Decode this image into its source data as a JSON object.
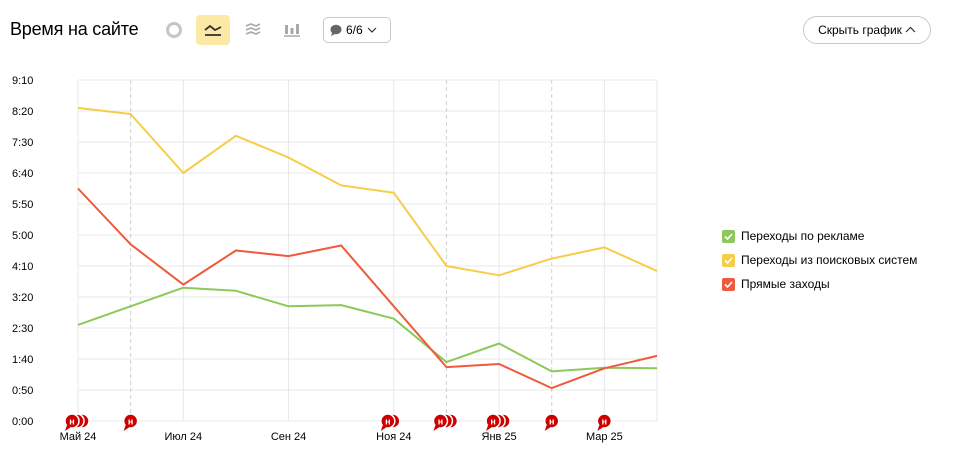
{
  "header": {
    "title": "Время на сайте",
    "annotations_label": "6/6",
    "hide_chart_label": "Скрыть график"
  },
  "toolbar": {
    "chart_types": [
      {
        "icon": "pie-chart-icon",
        "active": false
      },
      {
        "icon": "line-chart-icon",
        "active": true
      },
      {
        "icon": "area-chart-icon",
        "active": false
      },
      {
        "icon": "bar-chart-icon",
        "active": false
      }
    ]
  },
  "colors": {
    "grid": "#e8e8e8",
    "axis_text": "#000000",
    "marker": "#cc0000",
    "active_button_bg": "#fde9a6"
  },
  "chart_data": {
    "type": "line",
    "title": "",
    "xlabel": "",
    "ylabel": "",
    "categories": [
      "2024-05",
      "2024-06",
      "2024-07",
      "2024-08",
      "2024-09",
      "2024-10",
      "2024-11",
      "2024-12",
      "2025-01",
      "2025-02",
      "2025-03",
      "2025-04"
    ],
    "x_tick_labels": [
      {
        "index": 0,
        "label": "Май 24"
      },
      {
        "index": 2,
        "label": "Июл 24"
      },
      {
        "index": 4,
        "label": "Сен 24"
      },
      {
        "index": 6,
        "label": "Ноя 24"
      },
      {
        "index": 8,
        "label": "Янв 25"
      },
      {
        "index": 10,
        "label": "Мар 25"
      }
    ],
    "y_unit": "seconds",
    "ylim": [
      0,
      550
    ],
    "y_ticks": [
      0,
      50,
      100,
      150,
      200,
      250,
      300,
      350,
      400,
      450,
      500,
      550
    ],
    "y_tick_labels": [
      "0:00",
      "0:50",
      "1:40",
      "2:30",
      "3:20",
      "4:10",
      "5:00",
      "5:50",
      "6:40",
      "7:30",
      "8:20",
      "9:10"
    ],
    "grid": true,
    "legend_position": "right",
    "series": [
      {
        "name": "Переходы по рекламе",
        "color": "#8dc85a",
        "values": [
          155,
          185,
          215,
          210,
          185,
          187,
          165,
          95,
          125,
          80,
          86,
          85
        ]
      },
      {
        "name": "Переходы из поисковых систем",
        "color": "#f7cd48",
        "values": [
          505,
          495,
          400,
          460,
          425,
          380,
          368,
          250,
          235,
          262,
          280,
          242
        ]
      },
      {
        "name": "Прямые заходы",
        "color": "#ee5a3b",
        "values": [
          375,
          285,
          220,
          275,
          266,
          283,
          185,
          87,
          92,
          53,
          85,
          105
        ]
      }
    ],
    "annotation_markers": [
      {
        "index": 0,
        "count": 3,
        "label": "н"
      },
      {
        "index": 1,
        "count": 1,
        "label": "н"
      },
      {
        "index": 6,
        "count": 2,
        "label": "н"
      },
      {
        "index": 7,
        "count": 3,
        "label": "н"
      },
      {
        "index": 8,
        "count": 3,
        "label": "н"
      },
      {
        "index": 9,
        "count": 1,
        "label": "н"
      },
      {
        "index": 10,
        "count": 1,
        "label": "н"
      }
    ],
    "event_lines": [
      1,
      7,
      9
    ]
  }
}
